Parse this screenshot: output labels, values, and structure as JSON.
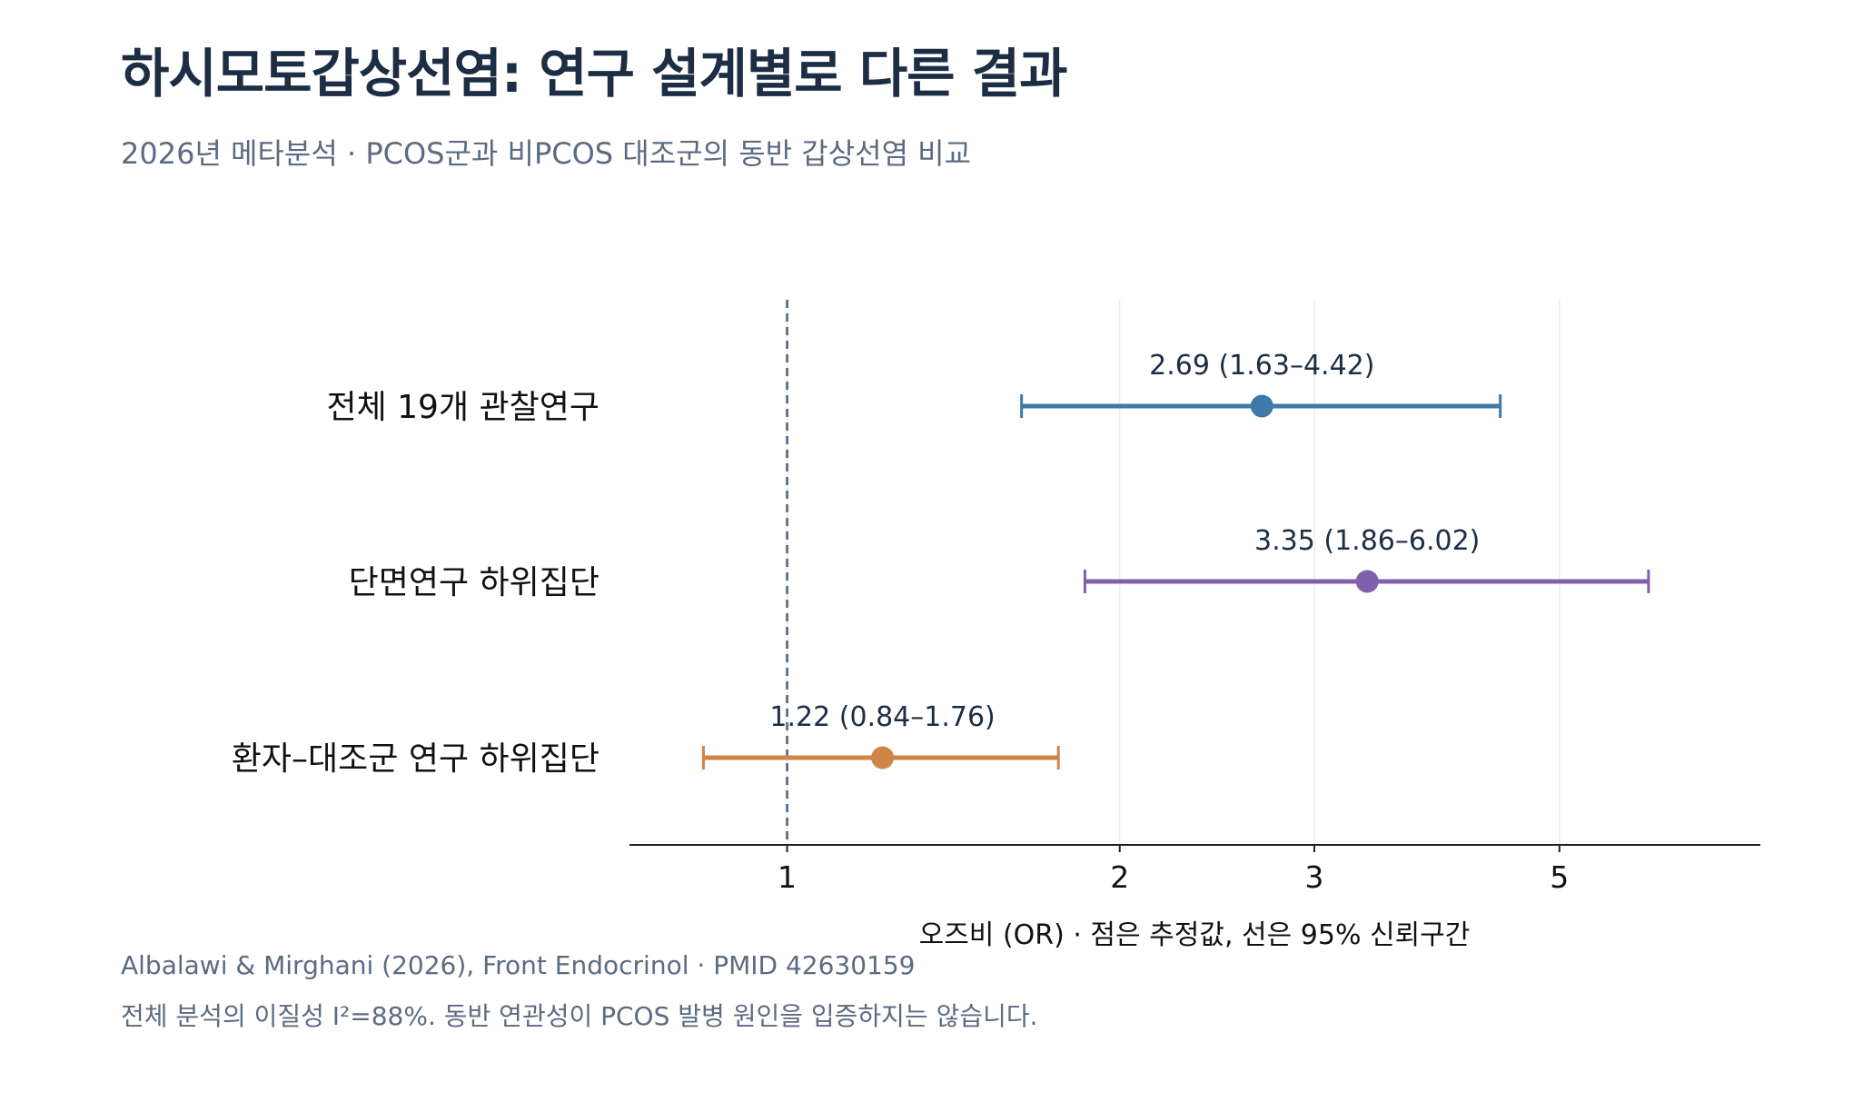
{
  "title": "하시모토갑상선염: 연구 설계별로 다른 결과",
  "subtitle": "2026년 메타분석 · PCOS군과 비PCOS 대조군의 동반 갑상선염 비교",
  "footer": {
    "source": "Albalawi & Mirghani (2026), Front Endocrinol · PMID 42630159",
    "note": "전체 분석의 이질성 I²=88%. 동반 연관성이 PCOS 발병 원인을 입증하지는 않습니다."
  },
  "chart_data": {
    "type": "forest",
    "xlabel": "오즈비 (OR) · 점은 추정값, 선은 95% 신뢰구간",
    "x_scale": "log",
    "xlim": [
      0.72,
      7.6
    ],
    "x_ticks": [
      1,
      2,
      3,
      5
    ],
    "reference_line": 1,
    "grid": "vertical at ticks",
    "rows": [
      {
        "label": "전체 19개 관찰연구",
        "estimate": 2.69,
        "lower": 1.63,
        "upper": 4.42,
        "text": "2.69  (1.63–4.42)",
        "color": "#3d7aab"
      },
      {
        "label": "단면연구 하위집단",
        "estimate": 3.35,
        "lower": 1.86,
        "upper": 6.02,
        "text": "3.35  (1.86–6.02)",
        "color": "#8060ad"
      },
      {
        "label": "환자–대조군 연구 하위집단",
        "estimate": 1.22,
        "lower": 0.84,
        "upper": 1.76,
        "text": "1.22  (0.84–1.76)",
        "color": "#cd8645"
      }
    ]
  }
}
